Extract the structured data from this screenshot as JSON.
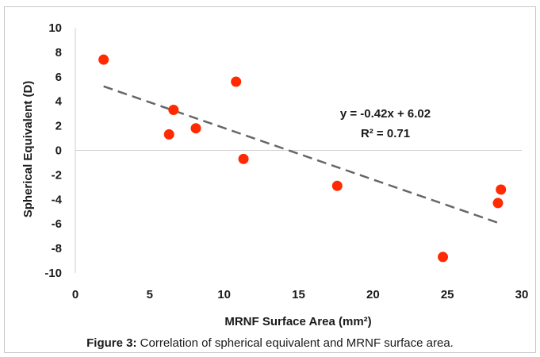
{
  "chart_data": {
    "type": "scatter",
    "title": "",
    "xlabel": "MRNF Surface Area (mm²)",
    "ylabel": "Spherical Equivalent (D)",
    "xlim": [
      0,
      30
    ],
    "ylim": [
      -10,
      10
    ],
    "xticks": [
      0,
      5,
      10,
      15,
      20,
      25,
      30
    ],
    "yticks": [
      10,
      8,
      6,
      4,
      2,
      0,
      -2,
      -4,
      -6,
      -8,
      -10
    ],
    "grid": false,
    "legend": "none",
    "series": [
      {
        "x": [
          1.9,
          6.3,
          6.6,
          8.1,
          10.8,
          11.3,
          17.6,
          24.7,
          28.4,
          28.6
        ],
        "y": [
          7.4,
          1.3,
          3.3,
          1.8,
          5.6,
          -0.7,
          -2.9,
          -8.7,
          -4.3,
          -3.2
        ],
        "color": "#ff2a00"
      }
    ],
    "trendline": {
      "slope": -0.42,
      "intercept": 6.02,
      "x_range": [
        1.9,
        28.6
      ],
      "style": "dashed",
      "color": "#666666"
    },
    "annotations": [
      "y = -0.42x + 6.02",
      "R² = 0.71"
    ]
  },
  "caption": {
    "label": "Figure 3:",
    "text": " Correlation of spherical equivalent and MRNF surface area."
  }
}
